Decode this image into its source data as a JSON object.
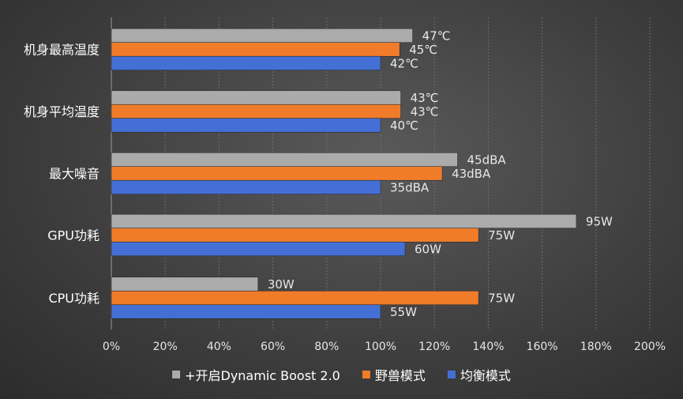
{
  "chart_data": {
    "type": "bar",
    "orientation": "horizontal",
    "categories": [
      "机身最高温度",
      "机身平均温度",
      "最大噪音",
      "GPU功耗",
      "CPU功耗"
    ],
    "series": [
      {
        "name": "+开启Dynamic Boost 2.0",
        "color": "#ababab",
        "values": [
          111.9,
          107.5,
          128.6,
          172.7,
          54.5
        ],
        "labels": [
          "47℃",
          "43℃",
          "45dBA",
          "95W",
          "30W"
        ]
      },
      {
        "name": "野兽模式",
        "color": "#f07c2a",
        "values": [
          107.1,
          107.5,
          122.9,
          136.4,
          136.4
        ],
        "labels": [
          "45℃",
          "43℃",
          "43dBA",
          "75W",
          "75W"
        ]
      },
      {
        "name": "均衡模式",
        "color": "#4470d6",
        "values": [
          100,
          100,
          100,
          109.1,
          100
        ],
        "labels": [
          "42℃",
          "40℃",
          "35dBA",
          "60W",
          "55W"
        ]
      }
    ],
    "xlim": [
      0,
      200
    ],
    "xticks": [
      "0%",
      "20%",
      "40%",
      "60%",
      "80%",
      "100%",
      "120%",
      "140%",
      "160%",
      "180%",
      "200%"
    ],
    "grid": true,
    "legend": "bottom"
  }
}
